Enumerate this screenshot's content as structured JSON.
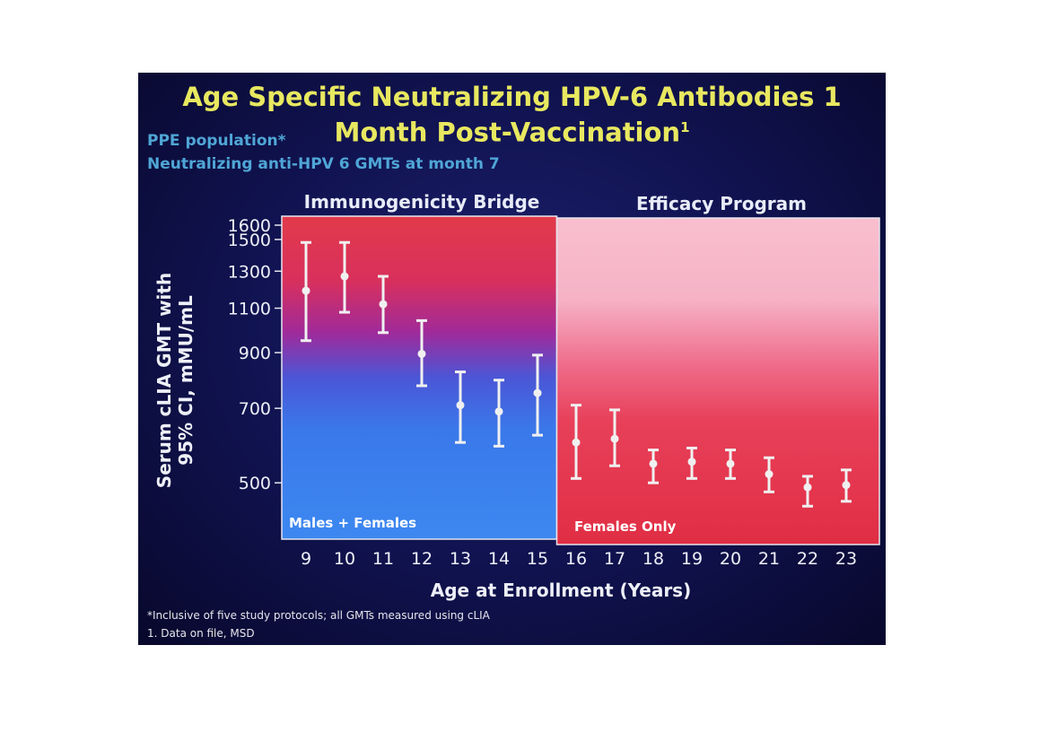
{
  "slide": {
    "title_line1": "Age Specific Neutralizing HPV-6 Antibodies 1",
    "title_line2": "Month Post-Vaccination",
    "title_sup": "1",
    "subtitle_line1": "PPE population*",
    "subtitle_line2": "Neutralizing anti-HPV 6 GMTs at month 7",
    "footnote1": "*Inclusive of five study protocols; all GMTs measured using cLIA",
    "footnote2": "1. Data on file, MSD"
  },
  "chart_data": {
    "type": "scatter",
    "title": "Age Specific Neutralizing HPV-6 Antibodies 1 Month Post-Vaccination",
    "xlabel": "Age at Enrollment (Years)",
    "ylabel": "Serum cLIA GMT with 95% CI, mMU/mL",
    "ylabel_line1": "Serum cLIA GMT with",
    "ylabel_line2": "95% CI, mMU/mL",
    "yscale": "log",
    "ylim": [
      380,
      1600
    ],
    "yticks": [
      500,
      700,
      900,
      1100,
      1300,
      1500,
      1600
    ],
    "x": [
      9,
      10,
      11,
      12,
      13,
      14,
      15,
      16,
      17,
      18,
      19,
      20,
      21,
      22,
      23
    ],
    "gmt": [
      1190,
      1270,
      1120,
      895,
      710,
      690,
      750,
      600,
      610,
      545,
      550,
      545,
      520,
      490,
      495
    ],
    "ci_lower": [
      950,
      1080,
      985,
      775,
      600,
      590,
      620,
      510,
      540,
      500,
      510,
      510,
      480,
      450,
      460
    ],
    "ci_upper": [
      1480,
      1480,
      1270,
      1040,
      825,
      795,
      890,
      710,
      695,
      580,
      585,
      580,
      560,
      515,
      530
    ],
    "groups": [
      {
        "section": "Immunogenicity Bridge",
        "population": "Males + Females",
        "x_range": [
          9,
          15
        ],
        "color": "#e03a48"
      },
      {
        "section": "Efficacy Program",
        "population": "Females Only",
        "x_range": [
          16,
          23
        ],
        "color": "#f6bccd"
      }
    ],
    "marker_color": "#f0f0f0",
    "grid": false,
    "legend": "none"
  }
}
